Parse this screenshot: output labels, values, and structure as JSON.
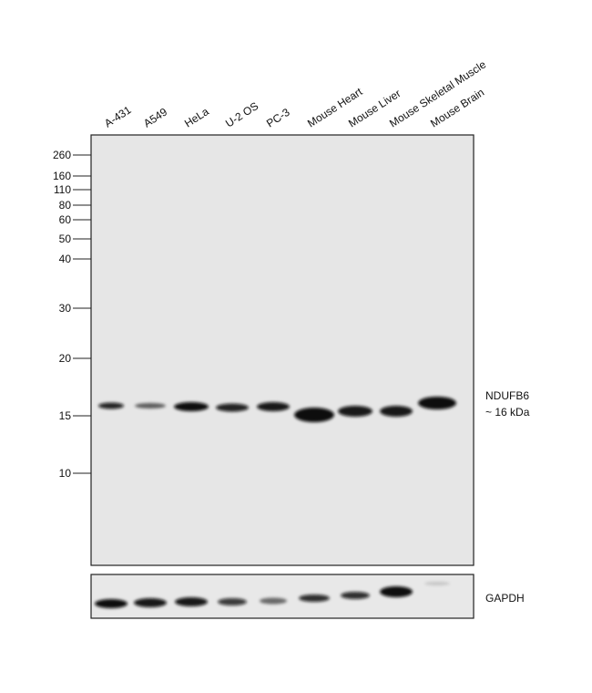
{
  "lanes": [
    "A-431",
    "A549",
    "HeLa",
    "U-2 OS",
    "PC-3",
    "Mouse Heart",
    "Mouse Liver",
    "Mouse Skeletal Muscle",
    "Mouse Brain"
  ],
  "markers": [
    260,
    160,
    110,
    80,
    60,
    50,
    40,
    30,
    20,
    15,
    10
  ],
  "target": {
    "name": "NDUFB6",
    "size": "~ 16 kDa"
  },
  "loading_control": "GAPDH"
}
